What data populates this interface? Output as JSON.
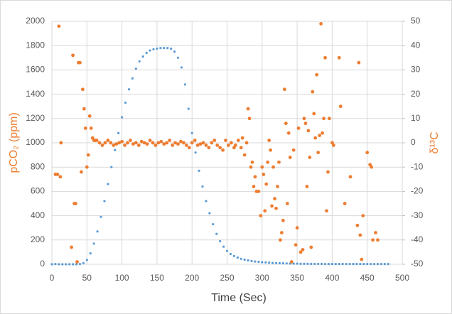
{
  "chart_data": {
    "type": "scatter",
    "xlabel": "Time (Sec)",
    "ylabel": "pCO₂ (ppm)",
    "y2label": "δ¹³C",
    "xlim": [
      0,
      500
    ],
    "xticks": [
      0,
      50,
      100,
      150,
      200,
      250,
      300,
      350,
      400,
      450,
      500
    ],
    "ylim": [
      0,
      2000
    ],
    "yticks": [
      0,
      200,
      400,
      600,
      800,
      1000,
      1200,
      1400,
      1600,
      1800,
      2000
    ],
    "y2lim": [
      -50,
      50
    ],
    "y2ticks": [
      -50,
      -40,
      -30,
      -20,
      -10,
      0,
      10,
      20,
      30,
      40,
      50
    ],
    "grid": true,
    "series": [
      {
        "color": "#5b9bd5",
        "axis": "y",
        "x": [
          0,
          5,
          10,
          15,
          20,
          25,
          30,
          35,
          40,
          45,
          50,
          55,
          60,
          65,
          70,
          75,
          80,
          85,
          90,
          95,
          100,
          105,
          110,
          115,
          120,
          125,
          130,
          135,
          140,
          145,
          150,
          155,
          160,
          165,
          170,
          175,
          180,
          185,
          190,
          195,
          200,
          205,
          210,
          215,
          220,
          225,
          230,
          235,
          240,
          245,
          250,
          255,
          260,
          265,
          270,
          275,
          280,
          285,
          290,
          295,
          300,
          305,
          310,
          315,
          320,
          325,
          330,
          335,
          340,
          345,
          350,
          355,
          360,
          365,
          370,
          375,
          380,
          385,
          390,
          395,
          400,
          405,
          410,
          415,
          420,
          425,
          430,
          435,
          440,
          445,
          450,
          455,
          460,
          465,
          470,
          475,
          480
        ],
        "values": [
          0,
          2,
          0,
          0,
          0,
          0,
          0,
          0,
          2,
          10,
          35,
          90,
          170,
          270,
          390,
          520,
          660,
          800,
          940,
          1080,
          1210,
          1330,
          1440,
          1530,
          1610,
          1670,
          1710,
          1740,
          1760,
          1770,
          1775,
          1780,
          1780,
          1780,
          1775,
          1750,
          1700,
          1620,
          1480,
          1280,
          1080,
          920,
          770,
          640,
          520,
          420,
          330,
          250,
          190,
          145,
          110,
          85,
          68,
          55,
          45,
          38,
          32,
          27,
          23,
          20,
          17,
          15,
          13,
          11,
          10,
          9,
          8,
          7,
          6,
          5,
          5,
          4,
          4,
          4,
          3,
          3,
          3,
          3,
          2,
          2,
          2,
          2,
          2,
          2,
          2,
          2,
          2,
          2,
          2,
          2,
          2,
          2,
          2,
          2,
          2,
          2,
          2
        ]
      },
      {
        "color": "#ed7d31",
        "axis": "y2",
        "x": [
          5,
          8,
          10,
          12,
          13,
          28,
          30,
          32,
          34,
          36,
          38,
          40,
          42,
          44,
          46,
          48,
          50,
          52,
          54,
          56,
          58,
          60,
          62,
          64,
          68,
          72,
          76,
          80,
          84,
          88,
          92,
          96,
          100,
          104,
          108,
          112,
          116,
          120,
          124,
          128,
          132,
          136,
          140,
          144,
          148,
          152,
          156,
          160,
          164,
          168,
          172,
          176,
          180,
          184,
          188,
          192,
          196,
          200,
          204,
          208,
          212,
          216,
          220,
          224,
          228,
          232,
          236,
          240,
          244,
          248,
          252,
          256,
          260,
          262,
          266,
          270,
          272,
          275,
          278,
          280,
          282,
          284,
          286,
          288,
          290,
          292,
          295,
          298,
          300,
          302,
          304,
          306,
          308,
          310,
          312,
          314,
          316,
          318,
          320,
          322,
          324,
          326,
          328,
          330,
          332,
          334,
          336,
          338,
          340,
          342,
          345,
          348,
          350,
          352,
          355,
          358,
          360,
          362,
          364,
          366,
          368,
          370,
          372,
          374,
          376,
          378,
          380,
          382,
          384,
          386,
          388,
          390,
          392,
          394,
          396,
          400,
          402,
          410,
          412,
          418,
          426,
          436,
          438,
          440,
          442,
          444,
          450,
          454,
          456,
          458,
          462,
          465
        ],
        "values": [
          -13,
          -13,
          48,
          -14,
          0,
          -43,
          36,
          -25,
          -25,
          -49,
          33,
          33,
          -12,
          22,
          14,
          6,
          -10,
          -5,
          11,
          6,
          2,
          1,
          1,
          1,
          0,
          -1,
          0,
          1,
          0,
          -1,
          -0.5,
          0,
          0.5,
          -1,
          0,
          1,
          -0.5,
          0,
          -1,
          0.5,
          0,
          -0.5,
          1,
          0,
          -1,
          0,
          0.5,
          -0.5,
          0,
          1,
          -1,
          0,
          -0.5,
          0.5,
          0,
          -1,
          -2,
          0,
          1,
          -1,
          -0.5,
          0,
          -1,
          -2,
          0,
          1,
          -1,
          -2,
          -3,
          1,
          -1,
          0,
          -2,
          -1,
          1,
          -2,
          2,
          -5,
          0,
          14,
          10,
          -10,
          -8,
          -18,
          -14,
          -20,
          -20,
          -30,
          -10,
          -13,
          -28,
          -17,
          -8,
          1,
          -3,
          -26,
          -10,
          -23,
          -27,
          -18,
          -8,
          -40,
          -37,
          -32,
          22,
          8,
          -25,
          4,
          -6,
          -49,
          -3,
          -42,
          -35,
          6,
          -45,
          -44,
          10,
          8,
          -18,
          5,
          -6,
          -43,
          21,
          12,
          2,
          28,
          -4,
          3,
          49,
          4,
          10,
          35,
          -28,
          -12,
          10,
          0,
          -1,
          35,
          15,
          -25,
          -14,
          -34,
          33,
          -38,
          -48,
          -30,
          -4,
          -9,
          -10,
          -40,
          -37,
          -40
        ]
      }
    ]
  }
}
